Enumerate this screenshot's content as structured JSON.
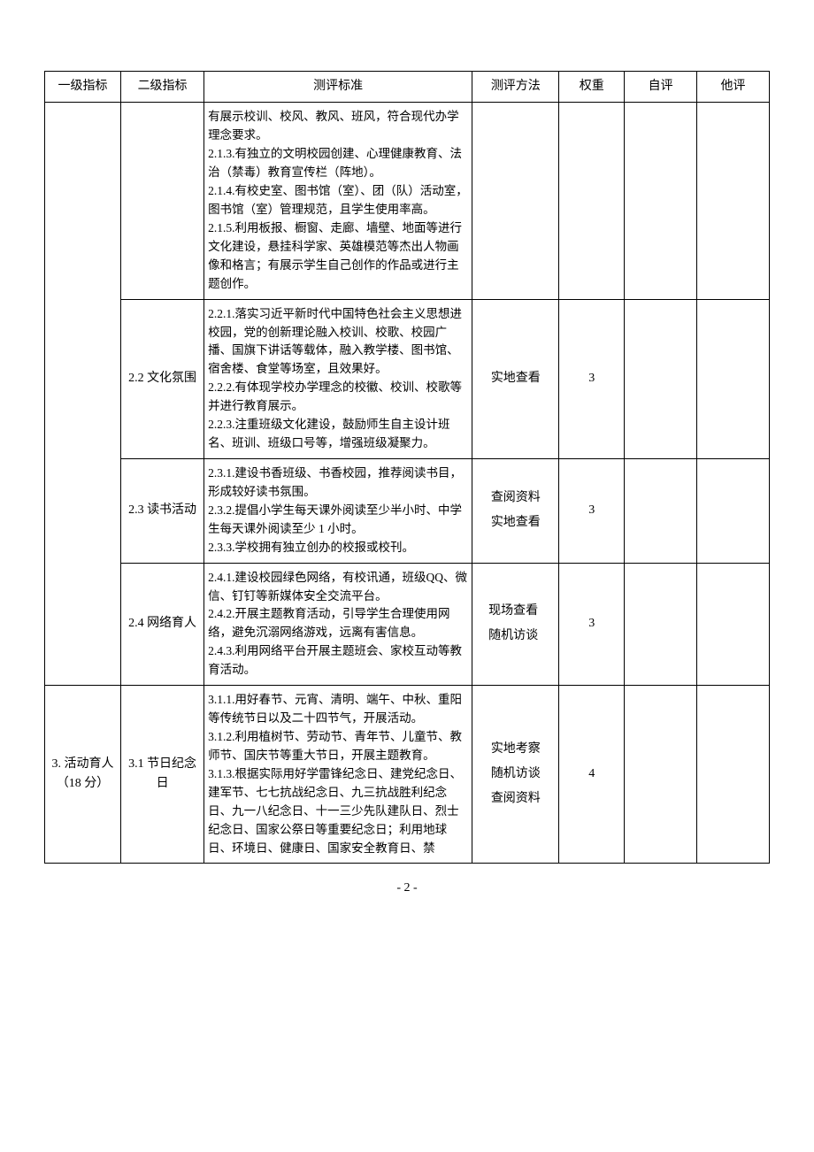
{
  "headers": {
    "level1": "一级指标",
    "level2": "二级指标",
    "standard": "测评标准",
    "method": "测评方法",
    "weight": "权重",
    "self": "自评",
    "other": "他评"
  },
  "rows": [
    {
      "level1": "",
      "level2": "",
      "standard": "有展示校训、校风、教风、班风，符合现代办学理念要求。\n2.1.3.有独立的文明校园创建、心理健康教育、法治（禁毒）教育宣传栏（阵地）。\n2.1.4.有校史室、图书馆（室）、团（队）活动室，图书馆（室）管理规范，且学生使用率高。\n2.1.5.利用板报、橱窗、走廊、墙壁、地面等进行文化建设，悬挂科学家、英雄模范等杰出人物画像和格言；有展示学生自己创作的作品或进行主题创作。",
      "method": "",
      "weight": "",
      "self": "",
      "other": ""
    },
    {
      "level1": "",
      "level2": "2.2 文化氛围",
      "standard": "2.2.1.落实习近平新时代中国特色社会主义思想进校园，党的创新理论融入校训、校歌、校园广播、国旗下讲话等载体，融入教学楼、图书馆、宿舍楼、食堂等场室，且效果好。\n2.2.2.有体现学校办学理念的校徽、校训、校歌等并进行教育展示。\n2.2.3.注重班级文化建设，鼓励师生自主设计班名、班训、班级口号等，增强班级凝聚力。",
      "method": "实地查看",
      "weight": "3",
      "self": "",
      "other": ""
    },
    {
      "level1": "",
      "level2": "2.3 读书活动",
      "standard": "2.3.1.建设书香班级、书香校园，推荐阅读书目，形成较好读书氛围。\n2.3.2.提倡小学生每天课外阅读至少半小时、中学生每天课外阅读至少 1 小时。\n2.3.3.学校拥有独立创办的校报或校刊。",
      "method": "查阅资料\n实地查看",
      "weight": "3",
      "self": "",
      "other": ""
    },
    {
      "level1": "",
      "level2": "2.4 网络育人",
      "standard": "2.4.1.建设校园绿色网络，有校讯通，班级QQ、微信、钉钉等新媒体安全交流平台。\n2.4.2.开展主题教育活动，引导学生合理使用网络，避免沉溺网络游戏，远离有害信息。\n2.4.3.利用网络平台开展主题班会、家校互动等教育活动。",
      "method": "　现场查看\n　随机访谈",
      "weight": "3",
      "self": "",
      "other": ""
    },
    {
      "level1": "3. 活动育人（18 分）",
      "level2": "3.1 节日纪念日",
      "standard": "3.1.1.用好春节、元宵、清明、端午、中秋、重阳等传统节日以及二十四节气，开展活动。\n3.1.2.利用植树节、劳动节、青年节、儿童节、教师节、国庆节等重大节日，开展主题教育。\n3.1.3.根据实际用好学雷锋纪念日、建党纪念日、建军节、七七抗战纪念日、九三抗战胜利纪念日、九一八纪念日、十一三少先队建队日、烈士纪念日、国家公祭日等重要纪念日；利用地球日、环境日、健康日、国家安全教育日、禁",
      "method": "实地考察\n随机访谈\n查阅资料",
      "weight": "4",
      "self": "",
      "other": ""
    }
  ],
  "footer": {
    "page": "- 2 -"
  }
}
